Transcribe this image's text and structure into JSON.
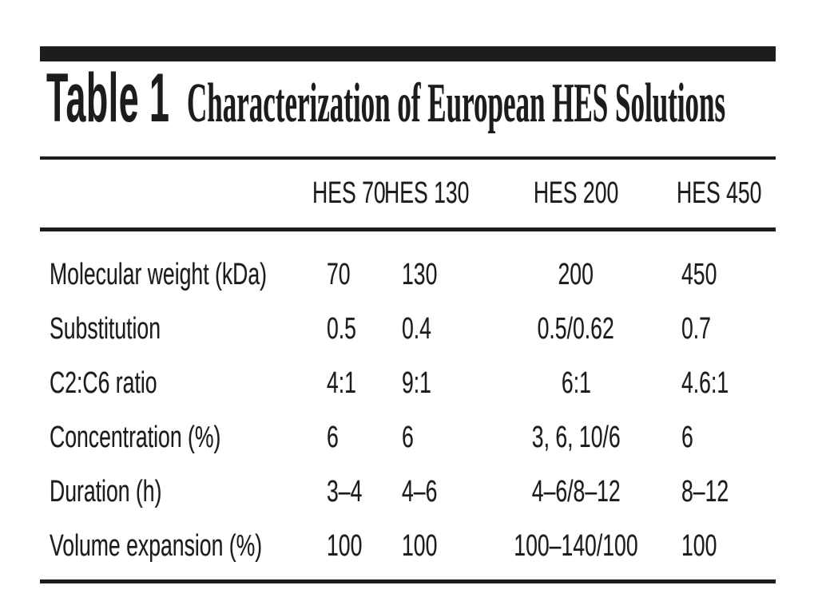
{
  "figure": {
    "table_label": "Table 1",
    "title": "Characterization of European HES Solutions"
  },
  "table": {
    "columns": [
      "HES 70",
      "HES 130",
      "HES 200",
      "HES 450"
    ],
    "rows": [
      {
        "label": "Molecular weight (kDa)",
        "values": [
          "70",
          "130",
          "200",
          "450"
        ]
      },
      {
        "label": "Substitution",
        "values": [
          "0.5",
          "0.4",
          "0.5/0.62",
          "0.7"
        ]
      },
      {
        "label": "C2:C6 ratio",
        "values": [
          "4:1",
          "9:1",
          "6:1",
          "4.6:1"
        ]
      },
      {
        "label": "Concentration (%)",
        "values": [
          "6",
          "6",
          "3, 6, 10/6",
          "6"
        ]
      },
      {
        "label": "Duration (h)",
        "values": [
          "3–4",
          "4–6",
          "4–6/8–12",
          "8–12"
        ]
      },
      {
        "label": "Volume expansion (%)",
        "values": [
          "100",
          "100",
          "100–140/100",
          "100"
        ]
      }
    ]
  },
  "chart_data": {
    "type": "table",
    "title": "Table 1 Characterization of European HES Solutions",
    "columns": [
      "",
      "HES 70",
      "HES 130",
      "HES 200",
      "HES 450"
    ],
    "rows": [
      [
        "Molecular weight (kDa)",
        "70",
        "130",
        "200",
        "450"
      ],
      [
        "Substitution",
        "0.5",
        "0.4",
        "0.5/0.62",
        "0.7"
      ],
      [
        "C2:C6 ratio",
        "4:1",
        "9:1",
        "6:1",
        "4.6:1"
      ],
      [
        "Concentration (%)",
        "6",
        "6",
        "3, 6, 10/6",
        "6"
      ],
      [
        "Duration (h)",
        "3–4",
        "4–6",
        "4–6/8–12",
        "8–12"
      ],
      [
        "Volume expansion (%)",
        "100",
        "100",
        "100–140/100",
        "100"
      ]
    ]
  },
  "colors": {
    "text": "#1c1c1c",
    "rule": "#1c1c1c",
    "background": "#ffffff"
  }
}
